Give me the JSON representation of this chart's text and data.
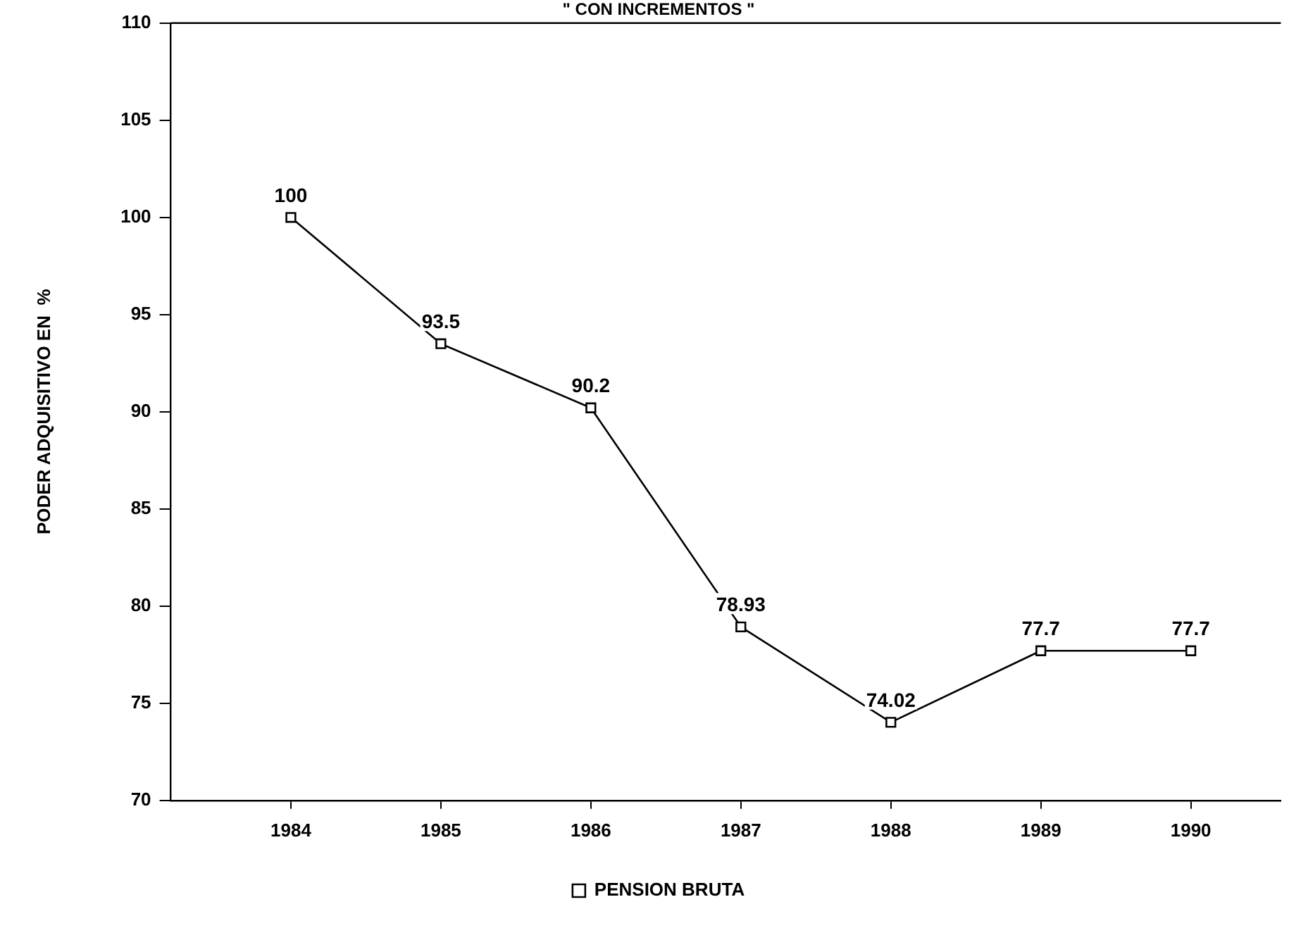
{
  "chart_data": {
    "type": "line",
    "title": "\" CON INCREMENTOS \"",
    "ylabel": "PODER ADQUISITIVO EN  %",
    "x": [
      1984,
      1985,
      1986,
      1987,
      1988,
      1989,
      1990
    ],
    "series": [
      {
        "name": "PENSION BRUTA",
        "color": "#000000",
        "values": [
          100,
          93.5,
          90.2,
          78.93,
          74.02,
          77.7,
          77.7
        ]
      }
    ],
    "xlim": [
      1983.2,
      1990.6
    ],
    "xticks": [
      1984,
      1985,
      1986,
      1987,
      1988,
      1989,
      1990
    ],
    "ylim": [
      70,
      110
    ],
    "yticks": [
      70,
      75,
      80,
      85,
      90,
      95,
      100,
      105,
      110
    ],
    "grid": false,
    "legend": "bottom",
    "marker": "square",
    "line_style": "solid",
    "data_labels": true
  }
}
